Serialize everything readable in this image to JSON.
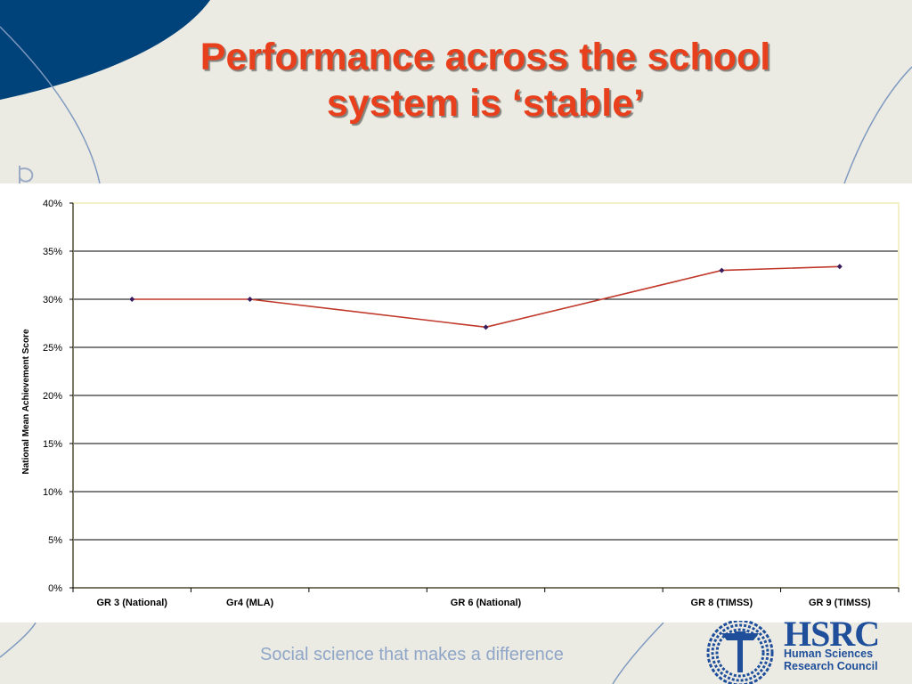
{
  "slide": {
    "title": "Performance across the school system is ‘stable’",
    "tagline": "Social science that makes a difference"
  },
  "logo": {
    "acronym": "HSRC",
    "name_line1": "Human Sciences",
    "name_line2": "Research Council",
    "color": "#1f4f9a"
  },
  "colors": {
    "title": "#e8401c",
    "line": "#c0392b",
    "marker": "#3a1c5c",
    "background": "#ecebe3",
    "deco_blue": "#00437a"
  },
  "chart_data": {
    "type": "line",
    "title": "",
    "xlabel": "",
    "ylabel": "National Mean Achievement Score",
    "ylim": [
      0,
      40
    ],
    "yticks": [
      "0%",
      "5%",
      "10%",
      "15%",
      "20%",
      "25%",
      "30%",
      "35%",
      "40%"
    ],
    "grid": true,
    "legend": "none",
    "categories": [
      "GR 3 (National)",
      "Gr4 (MLA)",
      "",
      "GR 6 (National)",
      "",
      "GR 8 (TIMSS)",
      "GR 9 (TIMSS)"
    ],
    "series": [
      {
        "values": [
          30,
          30,
          null,
          27.1,
          null,
          33,
          33.4
        ]
      }
    ]
  }
}
